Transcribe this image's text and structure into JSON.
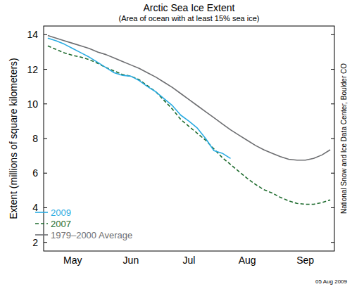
{
  "chart_data": {
    "type": "line",
    "title": "Arctic Sea Ice Extent",
    "subtitle": "(Area of ocean with at least 15% sea ice)",
    "y_label": "Extent (millions of square kilometers)",
    "annotations": [
      "National Snow and Ice Data Center, Boulder CO",
      "05 Aug 2009"
    ],
    "categories": [
      null,
      null,
      null,
      "May",
      null,
      null,
      null,
      null,
      null,
      null,
      "Jun",
      null,
      null,
      null,
      null,
      null,
      null,
      "Jul",
      null,
      null,
      null,
      null,
      null,
      null,
      "Aug",
      null,
      null,
      null,
      null,
      null,
      null,
      "Sep",
      null,
      null,
      null
    ],
    "series": [
      {
        "name": "2009",
        "color": "#29abe2",
        "line_style": "solid",
        "values": [
          13.8,
          13.65,
          13.45,
          13.2,
          12.95,
          12.7,
          12.4,
          12.1,
          11.8,
          11.65,
          11.6,
          11.35,
          11.0,
          10.7,
          10.3,
          9.9,
          9.35,
          9.0,
          8.6,
          8.0,
          7.3,
          7.15,
          6.85,
          null,
          null,
          null,
          null,
          null,
          null,
          null,
          null,
          null,
          null,
          null,
          null
        ]
      },
      {
        "name": "2007",
        "color": "#1e6b2e",
        "line_style": "dashed",
        "values": [
          13.35,
          13.15,
          12.95,
          12.8,
          12.7,
          12.55,
          12.35,
          12.1,
          11.9,
          11.7,
          11.6,
          11.4,
          11.05,
          10.7,
          10.2,
          9.7,
          9.1,
          8.7,
          8.3,
          7.9,
          7.4,
          6.9,
          6.5,
          6.1,
          5.7,
          5.35,
          5.05,
          4.85,
          4.6,
          4.4,
          4.25,
          4.2,
          4.2,
          4.3,
          4.45
        ]
      },
      {
        "name": "1979–2000 Average",
        "color": "#6d6e71",
        "line_style": "solid",
        "values": [
          13.95,
          13.8,
          13.65,
          13.5,
          13.35,
          13.2,
          13.0,
          12.85,
          12.65,
          12.45,
          12.25,
          12.05,
          11.8,
          11.55,
          11.25,
          10.95,
          10.6,
          10.25,
          9.9,
          9.55,
          9.2,
          8.85,
          8.5,
          8.2,
          7.9,
          7.6,
          7.35,
          7.15,
          6.95,
          6.8,
          6.75,
          6.75,
          6.85,
          7.05,
          7.35
        ]
      }
    ],
    "ylim": [
      1.5,
      14.5
    ],
    "yticks": [
      2,
      4,
      6,
      8,
      10,
      12,
      14
    ],
    "grid": false,
    "legend": "lower left"
  }
}
